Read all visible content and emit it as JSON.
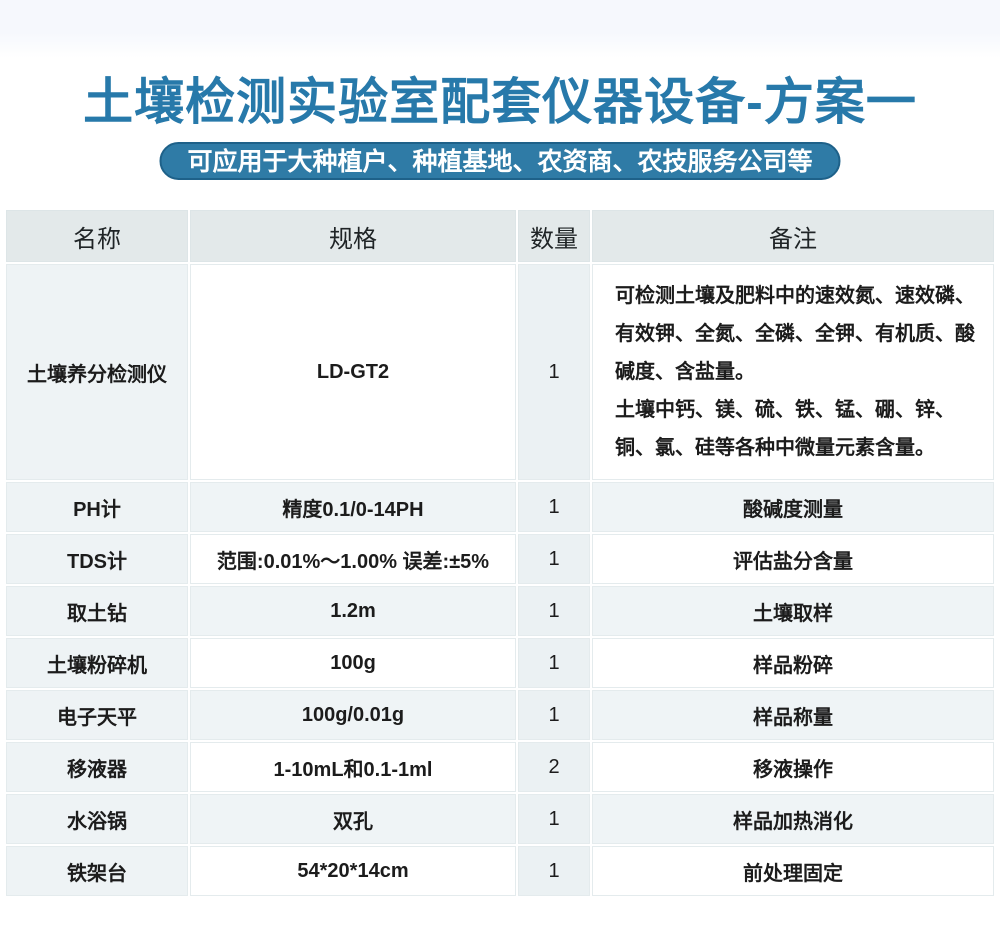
{
  "page": {
    "title": "土壤检测实验室配套仪器设备-方案一",
    "subtitle": "可应用于大种植户、种植基地、农资商、农技服务公司等"
  },
  "colors": {
    "title_blue": "#2779aa",
    "banner_background": "#2f7ba6",
    "banner_border": "#1e6189",
    "header_cell_background": "#e3e9ea",
    "name_column_background": "#eef3f5",
    "qty_column_background": "#ebf1f3",
    "alt_row_background": "#eff4f6",
    "top_band_background": "#f6f8fd"
  },
  "table": {
    "headers": [
      "名称",
      "规格",
      "数量",
      "备注"
    ],
    "rows": [
      {
        "name": "土壤养分检测仪",
        "spec": "LD-GT2",
        "qty": "1",
        "remark_lines": [
          "可检测土壤及肥料中的速效氮、速效磷、有效钾、全氮、全磷、全钾、有机质、酸碱度、含盐量。",
          "土壤中钙、镁、硫、铁、锰、硼、锌、铜、氯、硅等各种中微量元素含量。"
        ]
      },
      {
        "name": "PH计",
        "spec": "精度0.1/0-14PH",
        "qty": "1",
        "remark": "酸碱度测量"
      },
      {
        "name": "TDS计",
        "spec": "范围:0.01%～1.00% 误差:±5%",
        "qty": "1",
        "remark": "评估盐分含量"
      },
      {
        "name": "取土钻",
        "spec": "1.2m",
        "qty": "1",
        "remark": "土壤取样"
      },
      {
        "name": "土壤粉碎机",
        "spec": "100g",
        "qty": "1",
        "remark": "样品粉碎"
      },
      {
        "name": "电子天平",
        "spec": "100g/0.01g",
        "qty": "1",
        "remark": "样品称量"
      },
      {
        "name": "移液器",
        "spec": "1-10mL和0.1-1ml",
        "qty": "2",
        "remark": "移液操作"
      },
      {
        "name": "水浴锅",
        "spec": "双孔",
        "qty": "1",
        "remark": "样品加热消化"
      },
      {
        "name": "铁架台",
        "spec": "54*20*14cm",
        "qty": "1",
        "remark": "前处理固定"
      }
    ]
  }
}
